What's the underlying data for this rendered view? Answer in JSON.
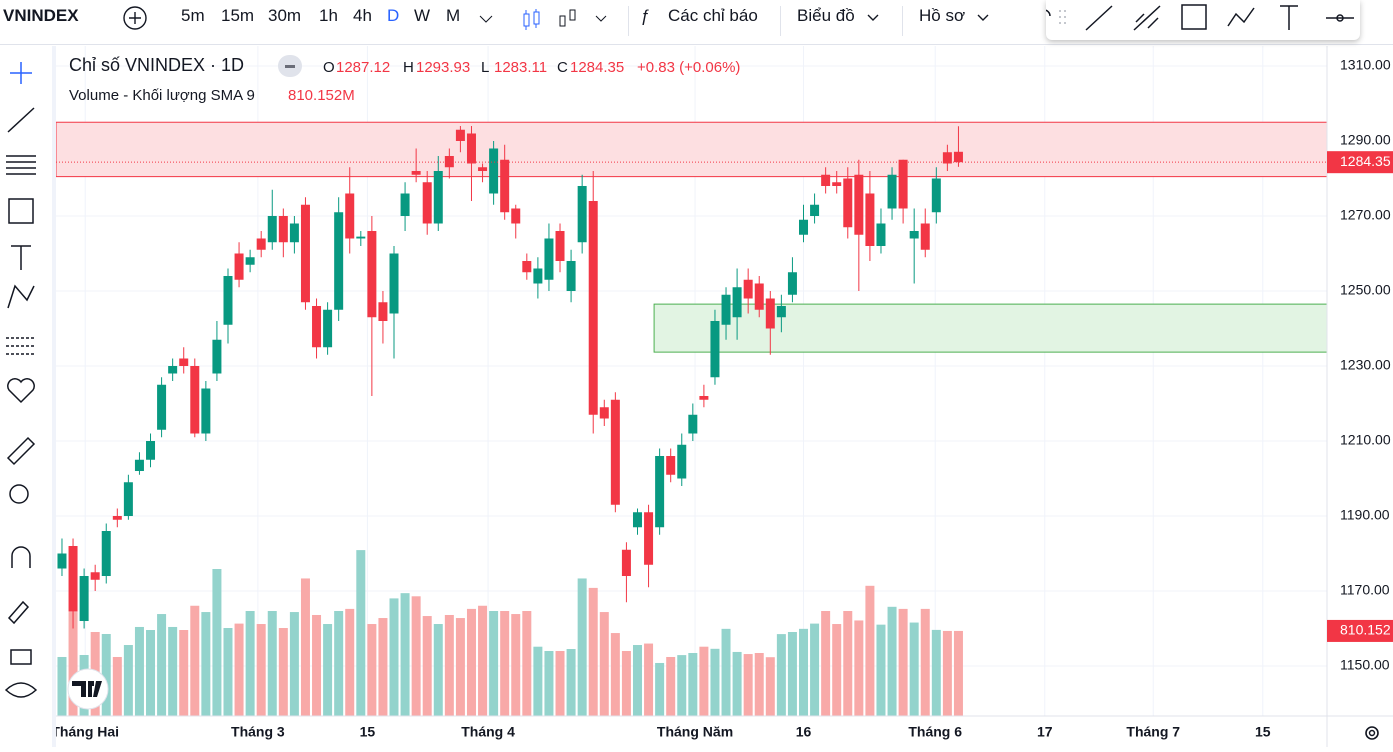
{
  "toolbar": {
    "symbol": "VNINDEX",
    "intervals": [
      "5m",
      "15m",
      "30m",
      "1h",
      "4h",
      "D",
      "W",
      "M"
    ],
    "active_interval": "D",
    "indicators": "Các chỉ báo",
    "chart": "Biểu đồ",
    "profile": "Hồ sơ"
  },
  "chart_data": {
    "type": "candlestick",
    "title": "Chỉ số VNINDEX · 1D",
    "ohlc_labels": [
      "O",
      "H",
      "L",
      "C"
    ],
    "change_label": "+0.83 (+0.06%)",
    "open": [
      1176,
      1182,
      1162,
      1175,
      1174,
      1190,
      1190,
      1202,
      1205,
      1213,
      1228,
      1232,
      1230,
      1212,
      1228,
      1241,
      1260,
      1257,
      1264,
      1263,
      1270,
      1263,
      1273,
      1246,
      1235,
      1245,
      1276,
      1264,
      1266,
      1247,
      1244,
      1270,
      1282,
      1279,
      1268,
      1286,
      1293,
      1292,
      1283,
      1276,
      1285,
      1272,
      1258,
      1252,
      1253,
      1266,
      1250,
      1263,
      1274,
      1219,
      1221,
      1181,
      1187,
      1191,
      1187,
      1206,
      1200,
      1212,
      1222,
      1227,
      1241,
      1243,
      1253,
      1252,
      1248,
      1243,
      1249,
      1265,
      1270,
      1281,
      1279,
      1280,
      1281,
      1276,
      1262,
      1272,
      1285,
      1264,
      1268,
      1271,
      1287,
      1287.12
    ],
    "high": [
      1184,
      1184,
      1176,
      1177,
      1188,
      1192,
      1201,
      1207,
      1212,
      1227,
      1232,
      1235,
      1232,
      1226,
      1242,
      1256,
      1263,
      1261,
      1266,
      1277,
      1272,
      1270,
      1275,
      1248,
      1247,
      1275,
      1283,
      1266,
      1270,
      1250,
      1262,
      1279,
      1288,
      1282,
      1286,
      1288,
      1294,
      1294,
      1284,
      1290,
      1289,
      1273,
      1260,
      1259,
      1268,
      1268,
      1261,
      1281,
      1282,
      1221,
      1223,
      1183,
      1192,
      1193,
      1208,
      1208,
      1212,
      1220,
      1225,
      1245,
      1251,
      1256,
      1256,
      1254,
      1250,
      1249,
      1259,
      1273,
      1276,
      1283,
      1282,
      1283,
      1285,
      1282,
      1272,
      1283,
      1285,
      1272,
      1272,
      1283,
      1289,
      1293.93
    ],
    "low": [
      1174,
      1160,
      1160,
      1170,
      1172,
      1187,
      1189,
      1201,
      1203,
      1211,
      1226,
      1228,
      1211,
      1210,
      1226,
      1236,
      1251,
      1255,
      1259,
      1261,
      1259,
      1260,
      1245,
      1232,
      1233,
      1242,
      1260,
      1262,
      1222,
      1236,
      1232,
      1266,
      1279,
      1265,
      1266,
      1280,
      1287,
      1274,
      1279,
      1273,
      1269,
      1264,
      1253,
      1248,
      1250,
      1255,
      1247,
      1260,
      1212,
      1214,
      1191,
      1167,
      1185,
      1171,
      1185,
      1199,
      1198,
      1210,
      1219,
      1225,
      1237,
      1237,
      1244,
      1243,
      1233,
      1239,
      1247,
      1263,
      1268,
      1276,
      1276,
      1264,
      1250,
      1258,
      1260,
      1269,
      1268,
      1252,
      1259,
      1268,
      1282,
      1283.11
    ],
    "close": [
      1180,
      1164.5,
      1174,
      1173,
      1186,
      1189,
      1199,
      1205,
      1210,
      1225,
      1230,
      1230,
      1212,
      1224,
      1237,
      1254,
      1253,
      1259,
      1261,
      1270,
      1263,
      1268,
      1247,
      1235,
      1245,
      1271,
      1264,
      1264.5,
      1243,
      1242,
      1260,
      1276,
      1281,
      1268,
      1282,
      1283,
      1290,
      1284,
      1282,
      1288,
      1271,
      1268,
      1255,
      1256,
      1264,
      1258,
      1258,
      1278,
      1217,
      1216,
      1193,
      1174,
      1191,
      1177,
      1206,
      1201,
      1209,
      1217,
      1221,
      1242,
      1249,
      1251,
      1248,
      1245,
      1240,
      1246,
      1255,
      1269,
      1273,
      1278,
      1278,
      1267,
      1265,
      1262,
      1268,
      1281,
      1272,
      1266,
      1261,
      1280,
      1284,
      1284.35
    ],
    "volume": {
      "name": "Volume - Khối lượng SMA 9",
      "value_label": "810.152M",
      "ylim": [
        0,
        3200
      ],
      "values": [
        562,
        990,
        581,
        800,
        781,
        562,
        676,
        848,
        819,
        971,
        848,
        819,
        1050,
        990,
        1400,
        838,
        880,
        1000,
        876,
        1000,
        838,
        990,
        1310,
        962,
        876,
        1000,
        1020,
        1580,
        876,
        933,
        1120,
        1170,
        1140,
        952,
        876,
        962,
        933,
        1020,
        1050,
        1000,
        1000,
        971,
        1000,
        660,
        619,
        619,
        638,
        1310,
        1220,
        990,
        790,
        619,
        676,
        690,
        505,
        562,
        580,
        600,
        660,
        640,
        830,
        610,
        590,
        600,
        560,
        780,
        800,
        830,
        880,
        1000,
        876,
        1000,
        910,
        1240,
        870,
        1040,
        1020,
        890,
        1020,
        820,
        810,
        810.152
      ]
    },
    "up_color": "#089981",
    "down_color": "#f23645",
    "volume_up_color": "#93d3cc",
    "volume_down_color": "#f8a9a8",
    "zones": [
      {
        "ymin": 1280.5,
        "ymax": 1295,
        "xstart": -0.54,
        "fill": "#fddfe1",
        "stroke": "#f23645"
      },
      {
        "ymin": 1233.7,
        "ymax": 1246.5,
        "xstart": 53.5,
        "fill": "#e2f4e3",
        "stroke": "#4caf50"
      }
    ],
    "xlim": [
      -0.54,
      114.3
    ],
    "xticks": [
      {
        "value": 2.1,
        "label": "Tháng Hai"
      },
      {
        "value": 17.7,
        "label": "Tháng 3"
      },
      {
        "value": 27.6,
        "label": "15"
      },
      {
        "value": 38.5,
        "label": "Tháng 4"
      },
      {
        "value": 57.2,
        "label": "Tháng Năm"
      },
      {
        "value": 67,
        "label": "16"
      },
      {
        "value": 78.9,
        "label": "Tháng 6"
      },
      {
        "value": 88.8,
        "label": "17"
      },
      {
        "value": 98.6,
        "label": "Tháng 7"
      },
      {
        "value": 108.5,
        "label": "15"
      }
    ],
    "ylim": [
      1136.67,
      1315.33
    ],
    "yticks": [
      {
        "value": 1150,
        "label": "1150.00"
      },
      {
        "value": 1170,
        "label": "1170.00"
      },
      {
        "value": 1190,
        "label": "1190.00"
      },
      {
        "value": 1210,
        "label": "1210.00"
      },
      {
        "value": 1230,
        "label": "1230.00"
      },
      {
        "value": 1250,
        "label": "1250.00"
      },
      {
        "value": 1270,
        "label": "1270.00"
      },
      {
        "value": 1290,
        "label": "1290.00"
      },
      {
        "value": 1310,
        "label": "1310.00"
      }
    ],
    "grid": true
  }
}
